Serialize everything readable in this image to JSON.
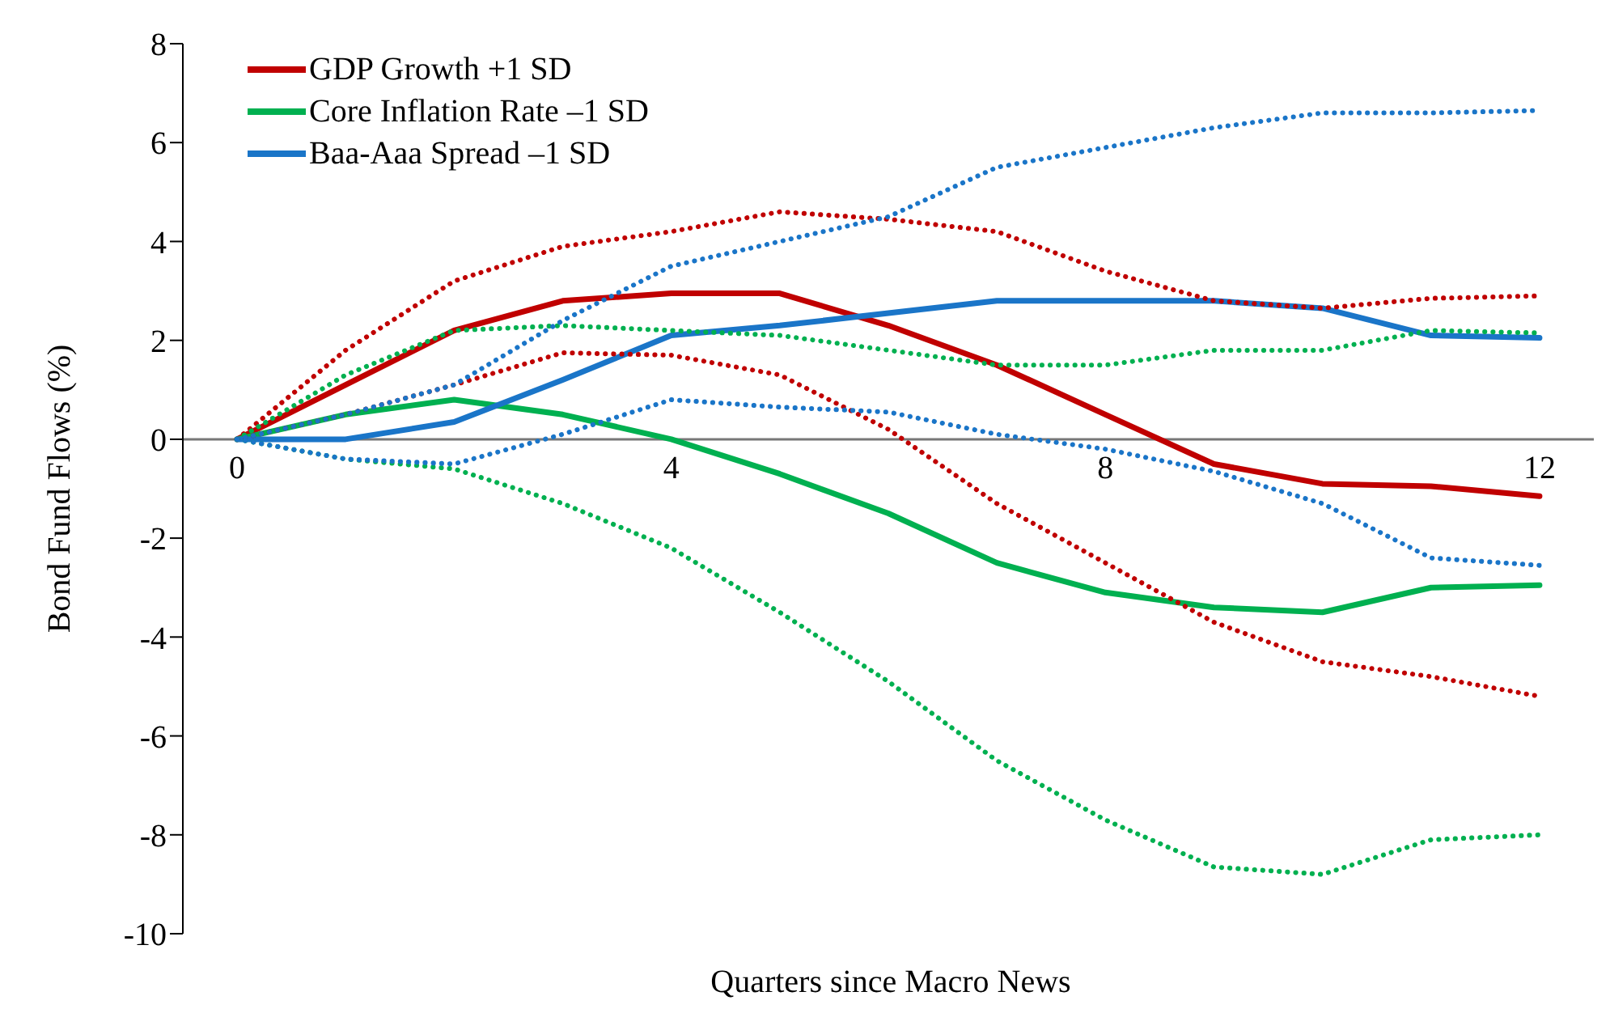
{
  "chart_data": {
    "type": "line",
    "xlabel": "Quarters since Macro News",
    "ylabel": "Bond Fund Flows (%)",
    "x": [
      0,
      1,
      2,
      3,
      4,
      5,
      6,
      7,
      8,
      9,
      10,
      11,
      12
    ],
    "xlim": [
      -0.5,
      12.5
    ],
    "xticks": [
      0,
      4,
      8,
      12
    ],
    "ylim": [
      -10,
      8
    ],
    "yticks": [
      -10,
      -8,
      -6,
      -4,
      -2,
      0,
      2,
      4,
      6,
      8
    ],
    "grid": false,
    "legend": "top left",
    "marker": "none",
    "line_style": "solid",
    "series": [
      {
        "name": "GDP Growth +1 SD",
        "color": "#c00000",
        "values": [
          0,
          1.1,
          2.2,
          2.8,
          2.95,
          2.95,
          2.3,
          1.5,
          0.5,
          -0.5,
          -0.9,
          -0.95,
          -1.15
        ]
      },
      {
        "name": "Core Inflation Rate –1 SD",
        "color": "#00b050",
        "values": [
          0,
          0.5,
          0.8,
          0.5,
          0,
          -0.7,
          -1.5,
          -2.5,
          -3.1,
          -3.4,
          -3.5,
          -3,
          -2.95
        ]
      },
      {
        "name": "Baa-Aaa Spread –1 SD",
        "color": "#1a75c8",
        "values": [
          0,
          0,
          0.35,
          1.2,
          2.1,
          2.3,
          2.55,
          2.8,
          2.8,
          2.8,
          2.65,
          2.1,
          2.05
        ]
      },
      {
        "color": "#c00000",
        "line_style": "dotted",
        "values": [
          0,
          1.8,
          3.2,
          3.9,
          4.2,
          4.6,
          4.45,
          4.2,
          3.4,
          2.8,
          2.65,
          2.85,
          2.9
        ]
      },
      {
        "color": "#c00000",
        "line_style": "dotted",
        "values": [
          0,
          0.5,
          1.1,
          1.75,
          1.7,
          1.3,
          0.2,
          -1.3,
          -2.5,
          -3.7,
          -4.5,
          -4.8,
          -5.2
        ]
      },
      {
        "color": "#00b050",
        "line_style": "dotted",
        "values": [
          0,
          1.3,
          2.2,
          2.3,
          2.2,
          2.1,
          1.8,
          1.5,
          1.5,
          1.8,
          1.8,
          2.2,
          2.15
        ]
      },
      {
        "color": "#00b050",
        "line_style": "dotted",
        "values": [
          0,
          -0.4,
          -0.6,
          -1.3,
          -2.2,
          -3.5,
          -4.9,
          -6.5,
          -7.7,
          -8.65,
          -8.8,
          -8.1,
          -8
        ]
      },
      {
        "color": "#1a75c8",
        "line_style": "dotted",
        "values": [
          0,
          0.5,
          1.1,
          2.4,
          3.5,
          4,
          4.5,
          5.5,
          5.9,
          6.3,
          6.6,
          6.6,
          6.65
        ]
      },
      {
        "color": "#1a75c8",
        "line_style": "dotted",
        "values": [
          0,
          -0.4,
          -0.5,
          0.1,
          0.8,
          0.65,
          0.55,
          0.1,
          -0.2,
          -0.65,
          -1.3,
          -2.4,
          -2.55
        ]
      }
    ]
  }
}
